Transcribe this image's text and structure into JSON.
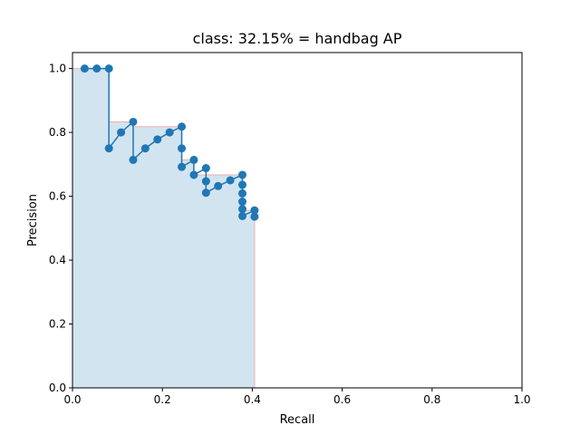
{
  "chart_data": {
    "type": "line",
    "title": "class: 32.15% = handbag AP",
    "xlabel": "Recall",
    "ylabel": "Precision",
    "xlim": [
      0,
      1
    ],
    "ylim": [
      0,
      1.05
    ],
    "xticks": [
      0.0,
      0.2,
      0.4,
      0.6,
      0.8,
      1.0
    ],
    "yticks": [
      0.0,
      0.2,
      0.4,
      0.6,
      0.8,
      1.0
    ],
    "xtick_labels": [
      "0.0",
      "0.2",
      "0.4",
      "0.6",
      "0.8",
      "1.0"
    ],
    "ytick_labels": [
      "0.0",
      "0.2",
      "0.4",
      "0.6",
      "0.8",
      "1.0"
    ],
    "grid": false,
    "series": [
      {
        "type": "line-markers",
        "color": "#1f77b4",
        "x": [
          0.027,
          0.054,
          0.081,
          0.081,
          0.108,
          0.135,
          0.135,
          0.162,
          0.189,
          0.216,
          0.243,
          0.243,
          0.243,
          0.27,
          0.27,
          0.297,
          0.297,
          0.297,
          0.324,
          0.351,
          0.378,
          0.378,
          0.378,
          0.378,
          0.378,
          0.378,
          0.405,
          0.405
        ],
        "y": [
          1.0,
          1.0,
          1.0,
          0.75,
          0.8,
          0.833,
          0.714,
          0.75,
          0.778,
          0.8,
          0.818,
          0.75,
          0.692,
          0.714,
          0.667,
          0.688,
          0.647,
          0.611,
          0.632,
          0.65,
          0.667,
          0.636,
          0.609,
          0.583,
          0.56,
          0.538,
          0.556,
          0.536
        ]
      },
      {
        "type": "step-area",
        "color": "#1f77b4",
        "edge_color": "#f4a5a5",
        "x": [
          0.0,
          0.081,
          0.081,
          0.135,
          0.135,
          0.243,
          0.243,
          0.27,
          0.27,
          0.378,
          0.378,
          0.405,
          0.405
        ],
        "y": [
          1.0,
          1.0,
          0.833,
          0.833,
          0.818,
          0.818,
          0.714,
          0.714,
          0.667,
          0.667,
          0.556,
          0.556,
          0.0
        ]
      }
    ]
  }
}
